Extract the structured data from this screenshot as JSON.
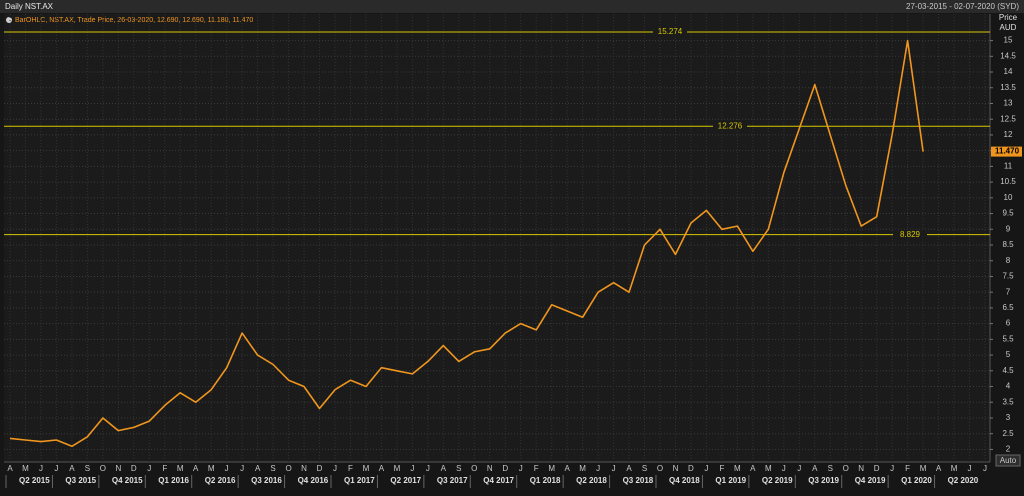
{
  "header": {
    "title": "Daily NST.AX",
    "range": "27-03-2015 - 02-07-2020 (SYD)"
  },
  "chart_data": {
    "type": "line",
    "legend_text": "BarOHLC, NST.AX, Trade Price, 26-03-2020, 12.690, 12.690, 11.180, 11.470",
    "y_axis_label": "Price",
    "y_axis_unit": "AUD",
    "categories": [
      "A",
      "M",
      "J",
      "J",
      "A",
      "S",
      "O",
      "N",
      "D",
      "J",
      "F",
      "M",
      "A",
      "M",
      "J",
      "J",
      "A",
      "S",
      "O",
      "N",
      "D",
      "J",
      "F",
      "M",
      "A",
      "M",
      "J",
      "J",
      "A",
      "S",
      "O",
      "N",
      "D",
      "J",
      "F",
      "M",
      "A",
      "M",
      "J",
      "J",
      "A",
      "S",
      "O",
      "N",
      "D",
      "J",
      "F",
      "M",
      "A",
      "M",
      "J",
      "J",
      "A",
      "S",
      "O",
      "N",
      "D",
      "J",
      "F",
      "M",
      "A",
      "M",
      "J",
      "J"
    ],
    "quarters": [
      "Q2 2015",
      "Q3 2015",
      "Q4 2015",
      "Q1 2016",
      "Q2 2016",
      "Q3 2016",
      "Q4 2016",
      "Q1 2017",
      "Q2 2017",
      "Q3 2017",
      "Q4 2017",
      "Q1 2018",
      "Q2 2018",
      "Q3 2018",
      "Q4 2018",
      "Q1 2019",
      "Q2 2019",
      "Q3 2019",
      "Q4 2019",
      "Q1 2020",
      "Q2 2020"
    ],
    "series": [
      {
        "name": "NST.AX",
        "color": "#f0961e",
        "values": [
          2.35,
          2.3,
          2.25,
          2.3,
          2.1,
          2.4,
          3.0,
          2.6,
          2.7,
          2.9,
          3.4,
          3.8,
          3.5,
          3.9,
          4.6,
          5.7,
          5.0,
          4.7,
          4.2,
          4.0,
          3.3,
          3.9,
          4.2,
          4.0,
          4.6,
          4.5,
          4.4,
          4.8,
          5.3,
          4.8,
          5.1,
          5.2,
          5.7,
          6.0,
          5.8,
          6.6,
          6.4,
          6.2,
          7.0,
          7.3,
          7.0,
          8.5,
          9.0,
          8.2,
          9.2,
          9.6,
          9.0,
          9.1,
          8.3,
          9.0,
          10.8,
          12.2,
          13.6,
          12.0,
          10.4,
          9.1,
          9.4,
          12.0,
          15.0,
          11.47,
          null,
          null,
          null,
          null
        ]
      }
    ],
    "levels": [
      15.274,
      12.276,
      8.829
    ],
    "level_color": "#d8c800",
    "last_price": {
      "value": 11.47,
      "label": "11.470"
    },
    "ylim": [
      1.6,
      15.4
    ],
    "yticks": [
      2,
      2.5,
      3,
      3.5,
      4,
      4.5,
      5,
      5.5,
      6,
      6.5,
      7,
      7.5,
      8,
      8.5,
      9,
      9.5,
      10,
      10.5,
      11,
      11.5,
      12,
      12.5,
      13,
      13.5,
      14,
      14.5,
      15
    ],
    "grid": true
  },
  "controls": {
    "auto": "Auto"
  }
}
